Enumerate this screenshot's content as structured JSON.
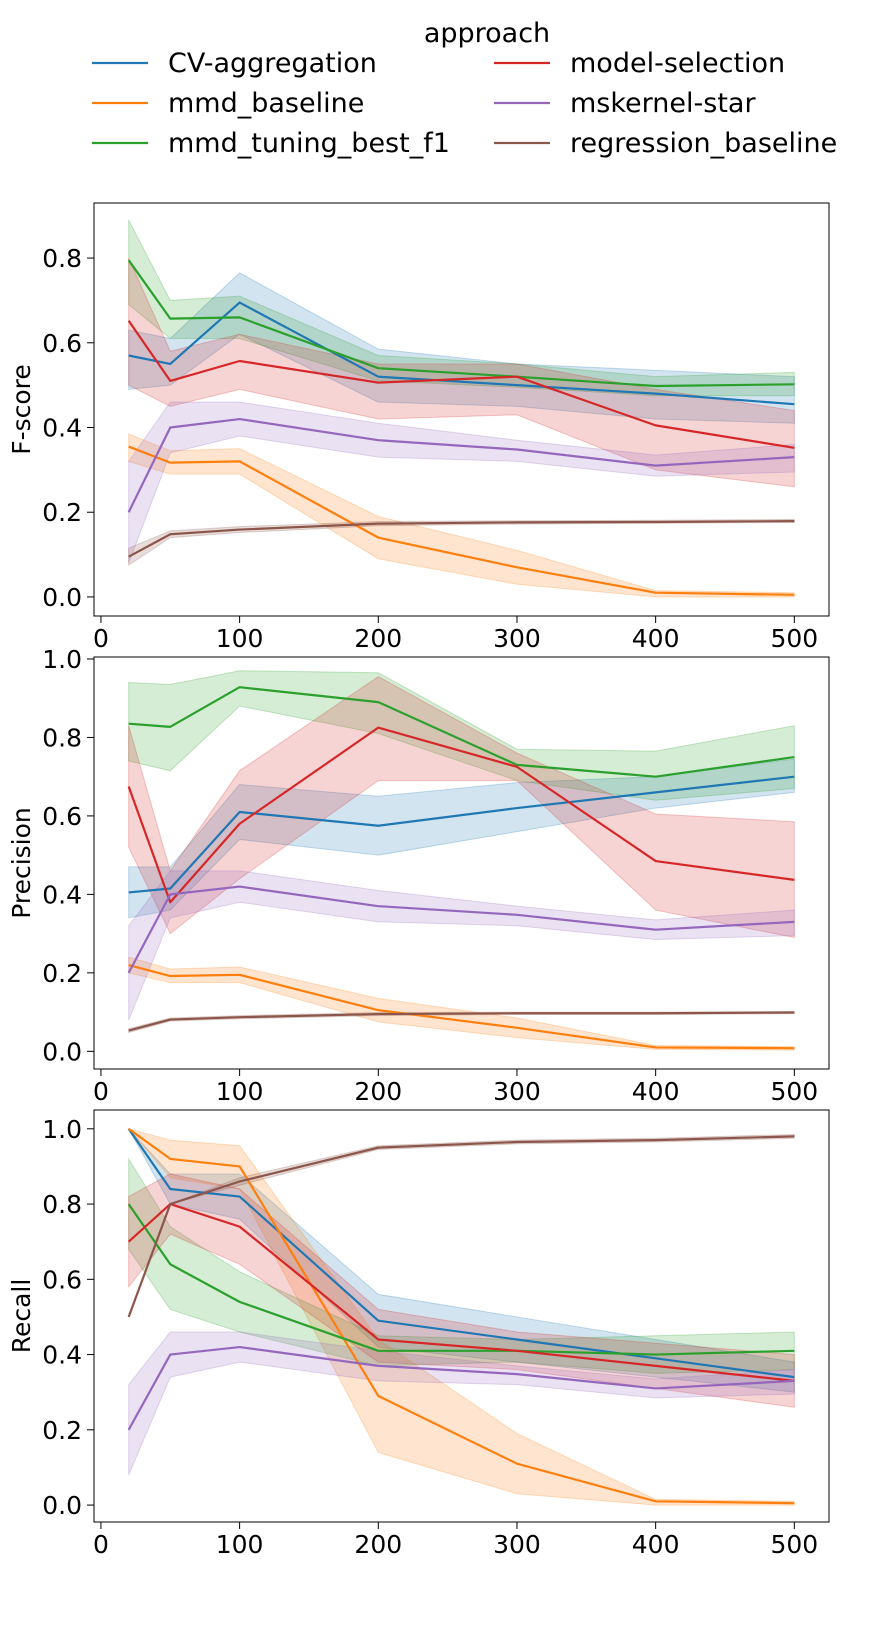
{
  "chart_data": {
    "type": "line",
    "legend": {
      "title": "approach",
      "placement": "top-center",
      "columns": 2
    },
    "x": [
      20,
      50,
      100,
      200,
      300,
      400,
      500
    ],
    "xlim": [
      -5,
      525
    ],
    "xticks": [
      0,
      100,
      200,
      300,
      400,
      500
    ],
    "colors": {
      "CV-aggregation": "#1f77b4",
      "mmd_baseline": "#ff7f0e",
      "mmd_tuning_best_f1": "#2ca02c",
      "model-selection": "#d62728",
      "mskernel-star": "#9467bd",
      "regression_baseline": "#8c564b"
    },
    "legend_order": [
      "CV-aggregation",
      "mmd_baseline",
      "mmd_tuning_best_f1",
      "model-selection",
      "mskernel-star",
      "regression_baseline"
    ],
    "panels": [
      {
        "ylabel": "F-score",
        "ylim": [
          -0.045,
          0.93
        ],
        "yticks": [
          "0.0",
          "0.2",
          "0.4",
          "0.6",
          "0.8"
        ],
        "series": [
          {
            "name": "CV-aggregation",
            "values": [
              0.57,
              0.55,
              0.695,
              0.52,
              0.5,
              0.48,
              0.455
            ],
            "lower": [
              0.49,
              0.5,
              0.62,
              0.46,
              0.45,
              0.42,
              0.41
            ],
            "upper": [
              0.63,
              0.61,
              0.765,
              0.585,
              0.55,
              0.535,
              0.52
            ]
          },
          {
            "name": "mmd_baseline",
            "values": [
              0.355,
              0.317,
              0.32,
              0.14,
              0.07,
              0.01,
              0.005
            ],
            "lower": [
              0.32,
              0.29,
              0.29,
              0.09,
              0.03,
              0.0,
              0.0
            ],
            "upper": [
              0.385,
              0.345,
              0.35,
              0.19,
              0.11,
              0.015,
              0.01
            ]
          },
          {
            "name": "mmd_tuning_best_f1",
            "values": [
              0.795,
              0.657,
              0.66,
              0.54,
              0.52,
              0.498,
              0.502
            ],
            "lower": [
              0.69,
              0.61,
              0.61,
              0.51,
              0.495,
              0.475,
              0.475
            ],
            "upper": [
              0.89,
              0.7,
              0.71,
              0.57,
              0.55,
              0.52,
              0.53
            ]
          },
          {
            "name": "model-selection",
            "values": [
              0.652,
              0.51,
              0.557,
              0.506,
              0.52,
              0.405,
              0.352
            ],
            "lower": [
              0.5,
              0.45,
              0.49,
              0.42,
              0.43,
              0.3,
              0.26
            ],
            "upper": [
              0.8,
              0.58,
              0.62,
              0.55,
              0.55,
              0.49,
              0.44
            ]
          },
          {
            "name": "mskernel-star",
            "values": [
              0.2,
              0.4,
              0.42,
              0.37,
              0.348,
              0.31,
              0.33
            ],
            "lower": [
              0.08,
              0.34,
              0.38,
              0.33,
              0.32,
              0.285,
              0.295
            ],
            "upper": [
              0.32,
              0.46,
              0.46,
              0.41,
              0.37,
              0.335,
              0.36
            ]
          },
          {
            "name": "regression_baseline",
            "values": [
              0.095,
              0.148,
              0.159,
              0.173,
              0.176,
              0.177,
              0.179
            ],
            "lower": [
              0.075,
              0.14,
              0.152,
              0.168,
              0.172,
              0.174,
              0.176
            ],
            "upper": [
              0.115,
              0.156,
              0.166,
              0.178,
              0.18,
              0.181,
              0.183
            ]
          }
        ]
      },
      {
        "ylabel": "Precision",
        "ylim": [
          -0.045,
          1.005
        ],
        "yticks": [
          "0.0",
          "0.2",
          "0.4",
          "0.6",
          "0.8",
          "1.0"
        ],
        "series": [
          {
            "name": "CV-aggregation",
            "values": [
              0.405,
              0.415,
              0.61,
              0.575,
              0.62,
              0.66,
              0.7
            ],
            "lower": [
              0.34,
              0.36,
              0.54,
              0.5,
              0.56,
              0.62,
              0.66
            ],
            "upper": [
              0.47,
              0.47,
              0.68,
              0.65,
              0.685,
              0.7,
              0.745
            ]
          },
          {
            "name": "mmd_baseline",
            "values": [
              0.22,
              0.192,
              0.195,
              0.105,
              0.06,
              0.01,
              0.008
            ],
            "lower": [
              0.2,
              0.175,
              0.175,
              0.075,
              0.035,
              0.005,
              0.003
            ],
            "upper": [
              0.24,
              0.21,
              0.215,
              0.135,
              0.085,
              0.015,
              0.012
            ]
          },
          {
            "name": "mmd_tuning_best_f1",
            "values": [
              0.835,
              0.827,
              0.928,
              0.89,
              0.73,
              0.7,
              0.75
            ],
            "lower": [
              0.74,
              0.715,
              0.88,
              0.81,
              0.69,
              0.64,
              0.67
            ],
            "upper": [
              0.94,
              0.935,
              0.97,
              0.965,
              0.77,
              0.765,
              0.83
            ]
          },
          {
            "name": "model-selection",
            "values": [
              0.675,
              0.38,
              0.58,
              0.825,
              0.725,
              0.485,
              0.437
            ],
            "lower": [
              0.52,
              0.3,
              0.44,
              0.69,
              0.69,
              0.36,
              0.29
            ],
            "upper": [
              0.83,
              0.46,
              0.715,
              0.955,
              0.76,
              0.605,
              0.585
            ]
          },
          {
            "name": "mskernel-star",
            "values": [
              0.2,
              0.4,
              0.42,
              0.37,
              0.348,
              0.31,
              0.33
            ],
            "lower": [
              0.08,
              0.34,
              0.38,
              0.33,
              0.32,
              0.285,
              0.295
            ],
            "upper": [
              0.32,
              0.46,
              0.46,
              0.41,
              0.37,
              0.335,
              0.36
            ]
          },
          {
            "name": "regression_baseline",
            "values": [
              0.053,
              0.081,
              0.087,
              0.095,
              0.097,
              0.097,
              0.099
            ],
            "lower": [
              0.048,
              0.077,
              0.083,
              0.091,
              0.094,
              0.094,
              0.096
            ],
            "upper": [
              0.058,
              0.085,
              0.091,
              0.099,
              0.1,
              0.1,
              0.102
            ]
          }
        ]
      },
      {
        "ylabel": "Recall",
        "ylim": [
          -0.045,
          1.05
        ],
        "yticks": [
          "0.0",
          "0.2",
          "0.4",
          "0.6",
          "0.8",
          "1.0"
        ],
        "series": [
          {
            "name": "CV-aggregation",
            "values": [
              1.0,
              0.84,
              0.82,
              0.49,
              0.44,
              0.39,
              0.34
            ],
            "lower": [
              1.0,
              0.8,
              0.76,
              0.42,
              0.38,
              0.34,
              0.3
            ],
            "upper": [
              1.0,
              0.88,
              0.88,
              0.56,
              0.5,
              0.44,
              0.38
            ]
          },
          {
            "name": "mmd_baseline",
            "values": [
              1.0,
              0.92,
              0.9,
              0.29,
              0.11,
              0.01,
              0.005
            ],
            "lower": [
              1.0,
              0.87,
              0.84,
              0.14,
              0.03,
              0.0,
              0.0
            ],
            "upper": [
              1.0,
              0.97,
              0.955,
              0.44,
              0.19,
              0.015,
              0.01
            ]
          },
          {
            "name": "mmd_tuning_best_f1",
            "values": [
              0.8,
              0.64,
              0.54,
              0.41,
              0.41,
              0.4,
              0.41
            ],
            "lower": [
              0.68,
              0.52,
              0.46,
              0.37,
              0.38,
              0.35,
              0.36
            ],
            "upper": [
              0.92,
              0.74,
              0.62,
              0.45,
              0.44,
              0.45,
              0.46
            ]
          },
          {
            "name": "model-selection",
            "values": [
              0.7,
              0.8,
              0.74,
              0.44,
              0.41,
              0.37,
              0.33
            ],
            "lower": [
              0.58,
              0.72,
              0.64,
              0.38,
              0.36,
              0.31,
              0.26
            ],
            "upper": [
              0.82,
              0.88,
              0.84,
              0.52,
              0.46,
              0.43,
              0.4
            ]
          },
          {
            "name": "mskernel-star",
            "values": [
              0.2,
              0.4,
              0.42,
              0.37,
              0.348,
              0.31,
              0.33
            ],
            "lower": [
              0.08,
              0.34,
              0.38,
              0.33,
              0.32,
              0.285,
              0.295
            ],
            "upper": [
              0.32,
              0.46,
              0.46,
              0.41,
              0.37,
              0.335,
              0.36
            ]
          },
          {
            "name": "regression_baseline",
            "values": [
              0.5,
              0.8,
              0.86,
              0.95,
              0.965,
              0.97,
              0.98
            ],
            "lower": [
              0.5,
              0.8,
              0.85,
              0.945,
              0.96,
              0.965,
              0.975
            ],
            "upper": [
              0.5,
              0.8,
              0.87,
              0.955,
              0.97,
              0.975,
              0.985
            ]
          }
        ]
      }
    ]
  }
}
